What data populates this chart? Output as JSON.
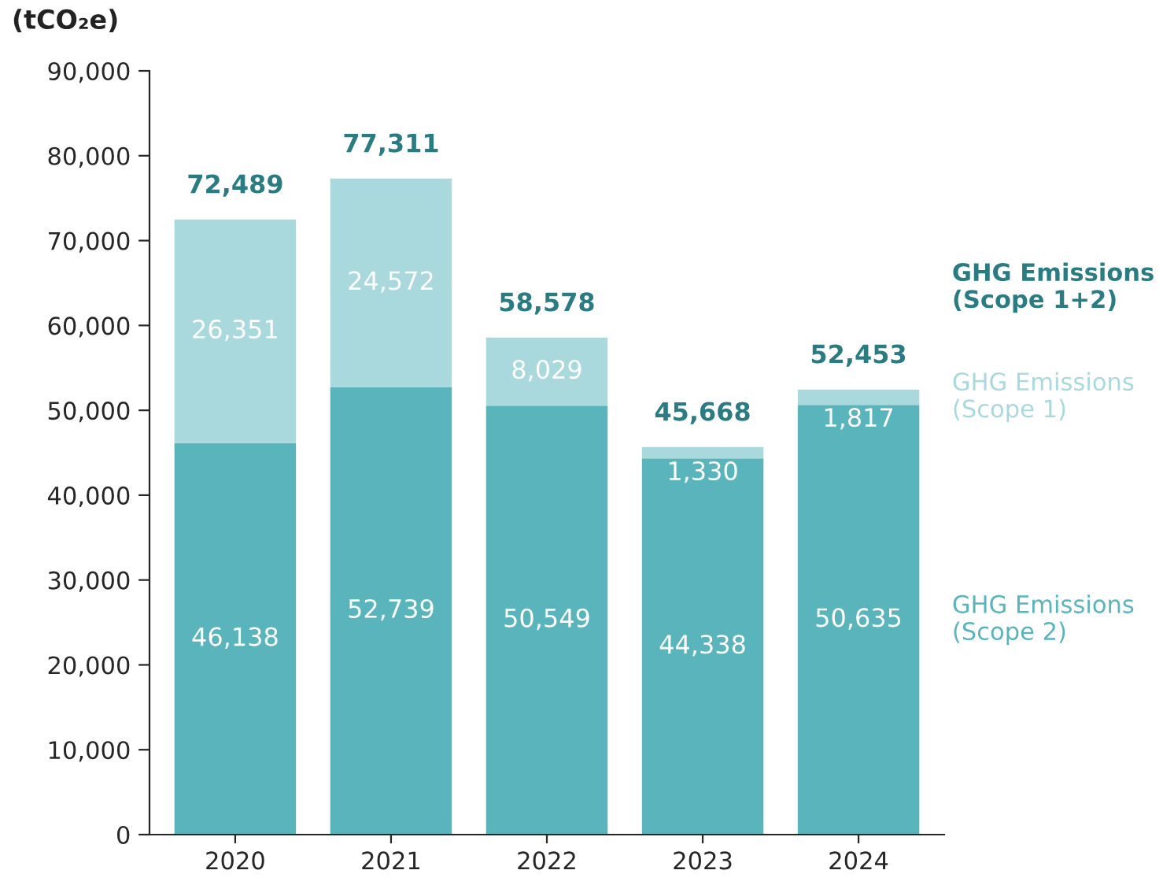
{
  "chart_data": {
    "type": "bar",
    "stacked": true,
    "ylabel": "(tCO₂e)",
    "categories": [
      "2020",
      "2021",
      "2022",
      "2023",
      "2024"
    ],
    "series": [
      {
        "name": "GHG Emissions\n(Scope 2)",
        "color": "#5ab4bc",
        "values": [
          46138,
          52739,
          50549,
          44338,
          50635
        ],
        "value_labels": [
          "46,138",
          "52,739",
          "50,549",
          "44,338",
          "50,635"
        ]
      },
      {
        "name": "GHG Emissions\n(Scope 1)",
        "color": "#a9d9dd",
        "values": [
          26351,
          24572,
          8029,
          1330,
          1817
        ],
        "value_labels": [
          "26,351",
          "24,572",
          "8,029",
          "1,330",
          "1,817"
        ]
      }
    ],
    "totals": [
      "72,489",
      "77,311",
      "58,578",
      "45,668",
      "52,453"
    ],
    "annotations": [
      "GHG Emissions\n(Scope 1+2)"
    ],
    "ylim": [
      0,
      90000
    ],
    "yticks": [
      {
        "value": 0,
        "label": "0"
      },
      {
        "value": 10000,
        "label": "10,000"
      },
      {
        "value": 20000,
        "label": "20,000"
      },
      {
        "value": 30000,
        "label": "30,000"
      },
      {
        "value": 40000,
        "label": "40,000"
      },
      {
        "value": 50000,
        "label": "50,000"
      },
      {
        "value": 60000,
        "label": "60,000"
      },
      {
        "value": 70000,
        "label": "70,000"
      },
      {
        "value": 80000,
        "label": "80,000"
      },
      {
        "value": 90000,
        "label": "90,000"
      }
    ],
    "grid": false,
    "legend": "right"
  }
}
